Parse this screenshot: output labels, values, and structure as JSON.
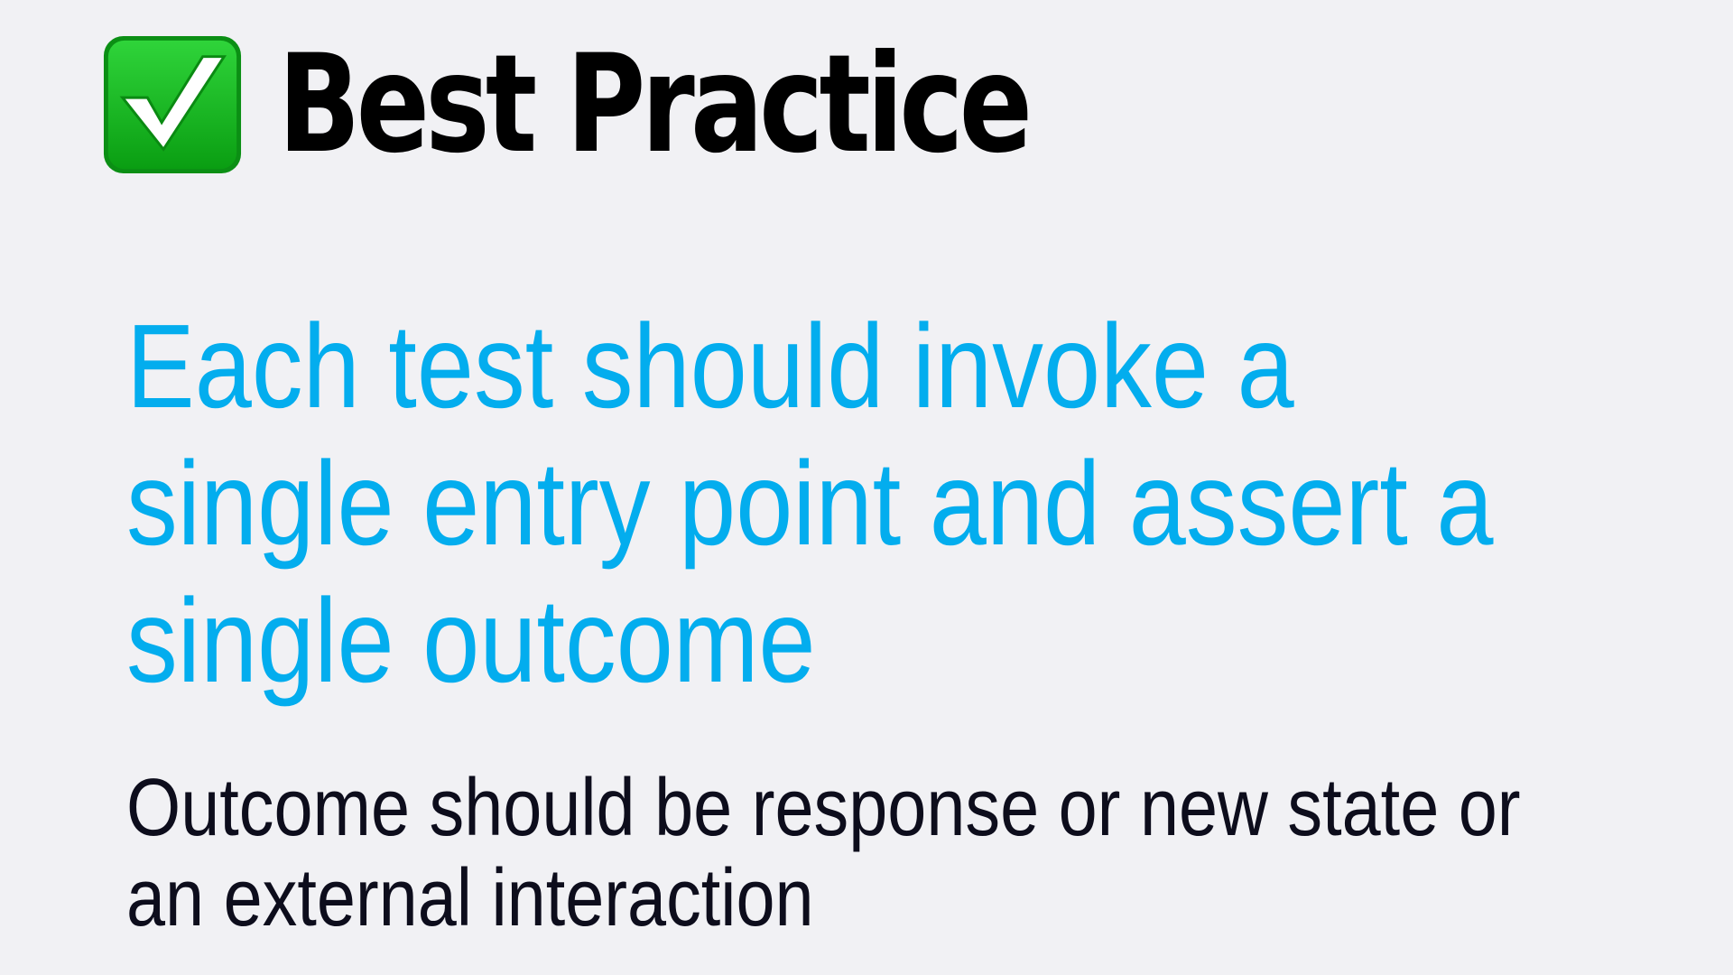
{
  "slide": {
    "icon": "check-mark-button-icon",
    "title": "Best Practice",
    "headline_lines": [
      "Each test should invoke a",
      "single entry point and assert a",
      "single outcome"
    ],
    "subtext_lines": [
      "Outcome should be response or new state or",
      "an external interaction"
    ]
  },
  "colors": {
    "background": "#f1f1f4",
    "title": "#000000",
    "headline": "#03adee",
    "subtext": "#0d0d1c",
    "icon_green": "#12b11e"
  }
}
